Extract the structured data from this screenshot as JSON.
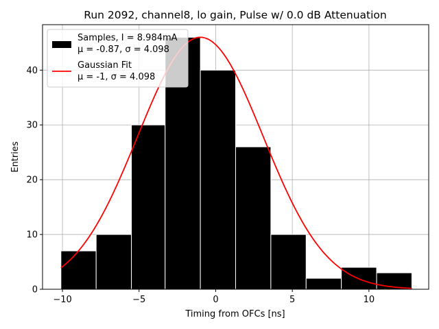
{
  "chart_data": {
    "type": "bar",
    "title": "Run 2092, channel8, lo gain, Pulse w/ 0.0 dB Attenuation",
    "xlabel": "Timing from OFCs [ns]",
    "ylabel": "Entries",
    "xlim": [
      -11.3,
      13.9
    ],
    "ylim": [
      0,
      48.3
    ],
    "xticks": [
      -10,
      -5,
      0,
      5,
      10
    ],
    "xtick_labels": [
      "−10",
      "−5",
      "0",
      "5",
      "10"
    ],
    "yticks": [
      0,
      10,
      20,
      30,
      40
    ],
    "ytick_labels": [
      "0",
      "10",
      "20",
      "30",
      "40"
    ],
    "grid": true,
    "legend_position": "top-left",
    "histogram": {
      "name": "Samples, I = 8.984mA",
      "stats_label": "μ = -0.87, σ = 4.098",
      "color": "#000000",
      "edgecolor": "#ffffff",
      "bins": [
        {
          "x0": -10.1,
          "x1": -7.8,
          "count": 7
        },
        {
          "x0": -7.8,
          "x1": -5.5,
          "count": 10
        },
        {
          "x0": -5.5,
          "x1": -3.3,
          "count": 30
        },
        {
          "x0": -3.3,
          "x1": -1.0,
          "count": 46
        },
        {
          "x0": -1.0,
          "x1": 1.3,
          "count": 40
        },
        {
          "x0": 1.3,
          "x1": 3.6,
          "count": 26
        },
        {
          "x0": 3.6,
          "x1": 5.9,
          "count": 10
        },
        {
          "x0": 5.9,
          "x1": 8.2,
          "count": 2
        },
        {
          "x0": 8.2,
          "x1": 10.5,
          "count": 4
        },
        {
          "x0": 10.5,
          "x1": 12.8,
          "count": 3
        }
      ]
    },
    "fit": {
      "name": "Gaussian Fit",
      "stats_label": "μ = -1, σ = 4.098",
      "color": "#ff0000",
      "mu": -1.0,
      "sigma": 4.098,
      "amplitude": 46.0,
      "x_range": [
        -10.1,
        12.8
      ]
    }
  }
}
